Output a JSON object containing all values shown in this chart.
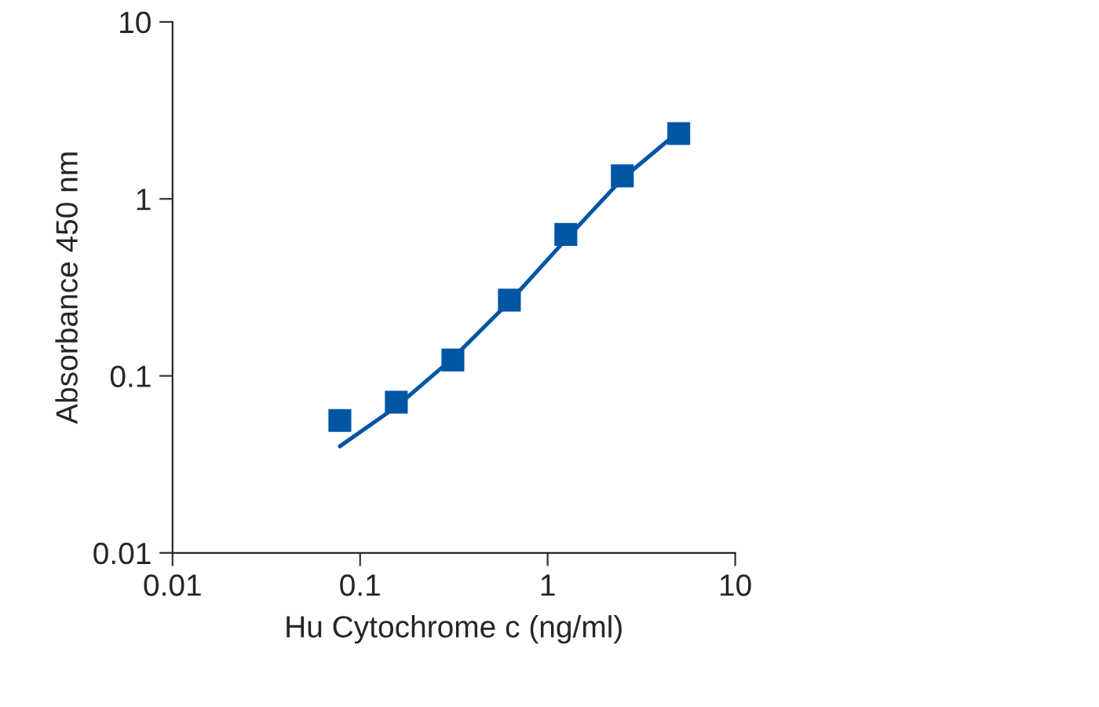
{
  "chart_data": {
    "type": "line",
    "xlabel": "Hu Cytochrome c (ng/ml)",
    "ylabel": "Absorbance 450 nm",
    "log": "xy",
    "grid": false,
    "xlim": [
      0.01,
      10
    ],
    "ylim": [
      0.01,
      10
    ],
    "xticks": [
      0.01,
      0.1,
      1,
      10
    ],
    "yticks": [
      0.01,
      0.1,
      1,
      10
    ],
    "series": [
      {
        "type": "scatter",
        "marker": "square",
        "color": "#0055a5",
        "x": [
          0.078,
          0.156,
          0.3125,
          0.625,
          1.25,
          2.5,
          5
        ],
        "values": [
          0.056,
          0.071,
          0.123,
          0.268,
          0.63,
          1.35,
          2.34
        ]
      },
      {
        "marker": "none",
        "line_style": "solid",
        "color": "#0055a5",
        "x": [
          0.078,
          0.156,
          0.3125,
          0.625,
          1.25,
          2.5,
          5
        ],
        "values": [
          0.04,
          0.067,
          0.126,
          0.262,
          0.59,
          1.3,
          2.4
        ]
      }
    ]
  }
}
